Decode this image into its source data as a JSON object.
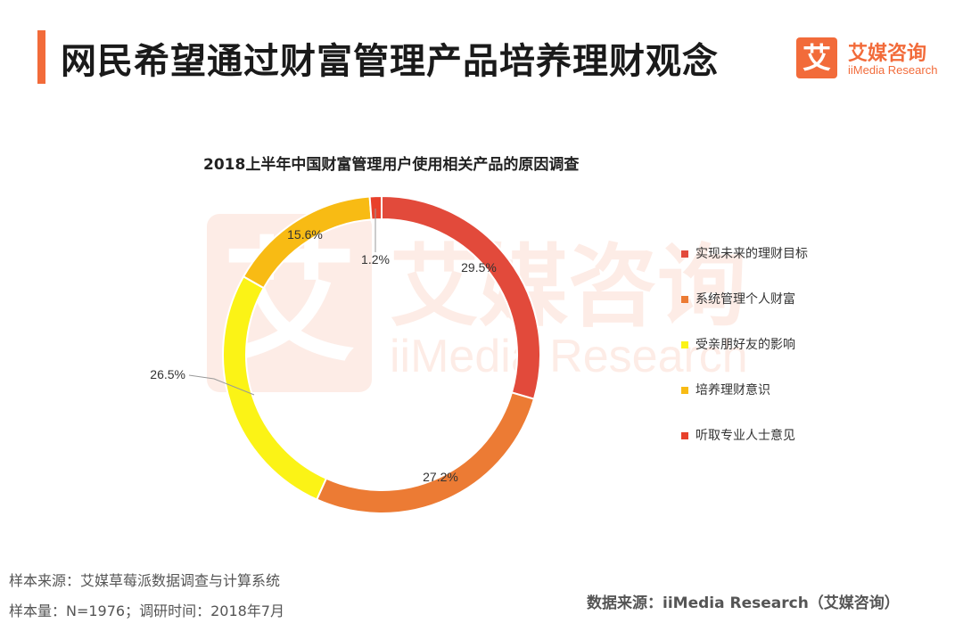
{
  "page": {
    "title": "网民希望通过财富管理产品培养理财观念"
  },
  "logo": {
    "cn": "艾媒咨询",
    "en": "iiMedia Research",
    "mark": "艾"
  },
  "watermark": {
    "mark": "艾",
    "cn": "艾媒咨询",
    "en": "iiMedia Research"
  },
  "footer": {
    "sample_source": "样本来源：艾媒草莓派数据调查与计算系统",
    "sample_size": "样本量：N=1976；调研时间：2018年7月",
    "data_source": "数据来源：iiMedia Research（艾媒咨询）"
  },
  "colors": {
    "accent": "#f26b3a"
  },
  "chart_data": {
    "type": "pie",
    "variant": "donut",
    "title": "2018上半年中国财富管理用户使用相关产品的原因调查",
    "unit": "%",
    "legend_position": "right",
    "series": [
      {
        "name": "实现未来的理财目标",
        "value": 29.5,
        "label": "29.5%",
        "color": "#e24a3b"
      },
      {
        "name": "系统管理个人财富",
        "value": 27.2,
        "label": "27.2%",
        "color": "#ec7b34"
      },
      {
        "name": "受亲朋好友的影响",
        "value": 26.5,
        "label": "26.5%",
        "color": "#fbf316"
      },
      {
        "name": "培养理财意识",
        "value": 15.6,
        "label": "15.6%",
        "color": "#f8bb14"
      },
      {
        "name": "听取专业人士意见",
        "value": 1.2,
        "label": "1.2%",
        "color": "#e8412b"
      }
    ]
  }
}
